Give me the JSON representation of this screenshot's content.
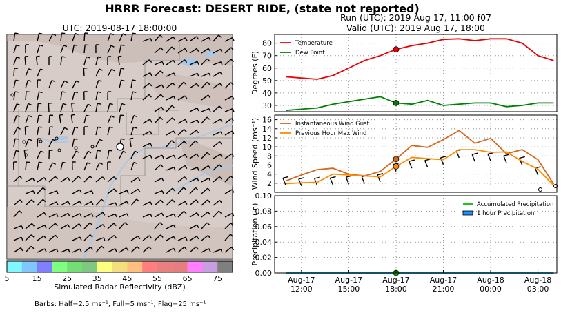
{
  "header": {
    "title": "HRRR Forecast: DESERT RIDE, (state not reported)",
    "map_title": "UTC: 2019-08-17 18:00:00",
    "run": "Run (UTC): 2019 Aug 17, 11:00 f07",
    "valid": "Valid (UTC): 2019 Aug 17, 18:00"
  },
  "colorbar": {
    "label": "Simulated Radar Reflectivity (dBZ)",
    "ticks": [
      "5",
      "15",
      "25",
      "35",
      "45",
      "55",
      "65",
      "75"
    ],
    "colors": [
      "#7ff8ff",
      "#7fc8ff",
      "#7f7fff",
      "#7fff7f",
      "#73de73",
      "#7fc87f",
      "#ffff7f",
      "#f4df7f",
      "#ffbf7f",
      "#ff7f7f",
      "#ea7f7f",
      "#e57f7f",
      "#ff7fff",
      "#c79fe0",
      "#7f7f7f"
    ]
  },
  "barb_note": "Barbs: Half=2.5 ms⁻¹, Full=5 ms⁻¹, Flag=25 ms⁻¹",
  "colors": {
    "temperature": "#ee0000",
    "dew_point": "#008000",
    "gust": "#d2691e",
    "max_wind": "#ff8c00",
    "precip_accum": "#00c000",
    "precip_hourly": "#1e90ff",
    "map_terrain": "#d9cdc9",
    "map_water": "#a9c8e6"
  },
  "chart_data": [
    {
      "type": "line",
      "panel": "temperature",
      "ylabel": "Degrees (F)",
      "ylim": [
        25,
        87
      ],
      "yticks": [
        30,
        40,
        50,
        60,
        70,
        80
      ],
      "x": [
        11,
        12,
        13,
        14,
        15,
        16,
        17,
        18,
        19,
        20,
        21,
        22,
        23,
        24,
        25,
        26,
        27,
        28
      ],
      "series": [
        {
          "name": "Temperature",
          "values": [
            53,
            52,
            51,
            54,
            60,
            66,
            70,
            75,
            78,
            80,
            83,
            83.5,
            82,
            83.5,
            83.5,
            80,
            70,
            66
          ]
        },
        {
          "name": "Dew Point",
          "values": [
            26,
            27,
            28,
            31,
            33,
            35,
            37,
            32,
            31,
            34,
            30,
            31,
            32,
            32,
            29,
            30,
            32,
            32
          ]
        }
      ],
      "marker": {
        "x": 18,
        "values": [
          75,
          32
        ]
      },
      "legend": "top-left",
      "grid": true
    },
    {
      "type": "line",
      "panel": "wind",
      "ylabel": "Wind Speed (ms⁻¹)",
      "ylim": [
        0,
        17
      ],
      "yticks": [
        2,
        4,
        6,
        8,
        10,
        12,
        14,
        16
      ],
      "x": [
        11,
        12,
        13,
        14,
        15,
        16,
        17,
        18,
        19,
        20,
        21,
        22,
        23,
        24,
        25,
        26,
        27,
        28
      ],
      "series": [
        {
          "name": "Instantaneous Wind Gust",
          "values": [
            2.5,
            3.8,
            5.0,
            5.3,
            4.0,
            3.6,
            4.6,
            7.3,
            10.3,
            9.9,
            11.6,
            13.6,
            10.8,
            11.9,
            8.5,
            9.4,
            7.2,
            1.8
          ]
        },
        {
          "name": "Previous Hour Max Wind",
          "values": [
            1.9,
            2.1,
            2.2,
            4.0,
            3.8,
            3.6,
            3.4,
            5.7,
            7.7,
            7.4,
            7.2,
            9.4,
            9.4,
            8.8,
            8.9,
            6.8,
            5.1,
            1.5
          ]
        }
      ],
      "marker": {
        "x": 18,
        "values": [
          7.3,
          5.7
        ]
      },
      "barbs_y": [
        1.6,
        1.4,
        1.5,
        1.6,
        1.8,
        1.9,
        2.3,
        4.6,
        5.3,
        5.5,
        6.1,
        7.6,
        6.8,
        6.9,
        6.5,
        6.0,
        3.8,
        0
      ],
      "legend": "top-left",
      "grid": true
    },
    {
      "type": "line",
      "panel": "precipitation",
      "ylabel": "Precipitation (in)",
      "ylim": [
        0,
        0.1
      ],
      "yticks": [
        "0.00",
        "0.02",
        "0.04",
        "0.06",
        "0.08",
        "0.10"
      ],
      "x": [
        11,
        12,
        13,
        14,
        15,
        16,
        17,
        18,
        19,
        20,
        21,
        22,
        23,
        24,
        25,
        26,
        27,
        28
      ],
      "series": [
        {
          "name": "Accumulated Precipitation",
          "values": [
            0,
            0,
            0,
            0,
            0,
            0,
            0,
            0,
            0,
            0,
            0,
            0,
            0,
            0,
            0,
            0,
            0,
            0
          ]
        },
        {
          "name": "1 hour Precipitation",
          "values": [
            0,
            0,
            0,
            0,
            0,
            0,
            0,
            0,
            0,
            0,
            0,
            0,
            0,
            0,
            0,
            0,
            0,
            0
          ]
        }
      ],
      "marker": {
        "x": 18,
        "values": [
          0
        ]
      },
      "xtick_values": [
        12,
        15,
        18,
        21,
        24,
        27
      ],
      "xtick_labels": [
        [
          "Aug-17",
          "12:00"
        ],
        [
          "Aug-17",
          "15:00"
        ],
        [
          "Aug-17",
          "18:00"
        ],
        [
          "Aug-17",
          "21:00"
        ],
        [
          "Aug-18",
          "00:00"
        ],
        [
          "Aug-18",
          "03:00"
        ]
      ],
      "legend": "top-right",
      "grid": true
    }
  ]
}
